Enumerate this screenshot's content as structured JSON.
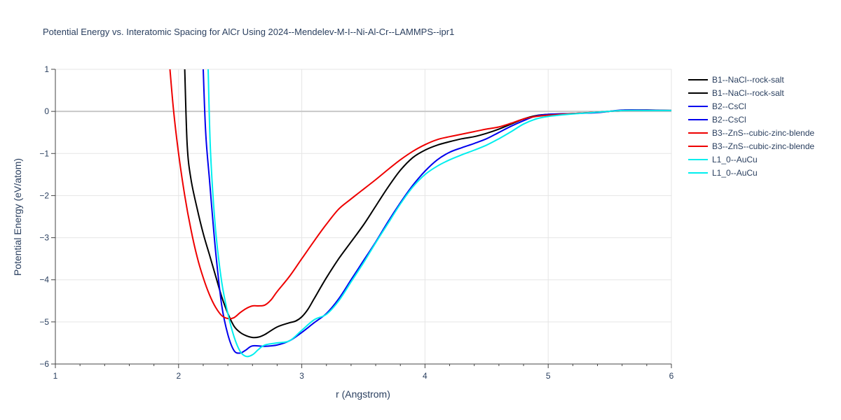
{
  "chart_data": {
    "type": "line",
    "title": "Potential Energy vs. Interatomic Spacing for AlCr Using 2024--Mendelev-M-I--Ni-Al-Cr--LAMMPS--ipr1",
    "xlabel": "r (Angstrom)",
    "ylabel": "Potential Energy (eV/atom)",
    "xlim": [
      1,
      6
    ],
    "ylim": [
      -6,
      1
    ],
    "xticks": [
      "1",
      "2",
      "3",
      "4",
      "5",
      "6"
    ],
    "yticks": [
      "1",
      "0",
      "−1",
      "−2",
      "−3",
      "−4",
      "−5",
      "−6"
    ],
    "grid": true,
    "legend_position": "right",
    "series": [
      {
        "name": "B1--NaCl--rock-salt",
        "color": "#000000",
        "x": [
          2.05,
          2.07,
          2.1,
          2.15,
          2.2,
          2.25,
          2.3,
          2.35,
          2.4,
          2.45,
          2.5,
          2.55,
          2.6,
          2.65,
          2.7,
          2.8,
          2.9,
          2.95,
          3.0,
          3.05,
          3.1,
          3.2,
          3.3,
          3.4,
          3.5,
          3.6,
          3.7,
          3.8,
          3.9,
          4.0,
          4.1,
          4.2,
          4.3,
          4.4,
          4.5,
          4.6,
          4.7,
          4.8,
          4.9,
          5.0,
          5.2,
          5.4,
          5.6,
          5.8,
          6.0
        ],
        "y": [
          1.0,
          -0.8,
          -1.6,
          -2.3,
          -2.9,
          -3.4,
          -3.9,
          -4.4,
          -4.8,
          -5.1,
          -5.25,
          -5.33,
          -5.37,
          -5.36,
          -5.3,
          -5.12,
          -5.02,
          -4.98,
          -4.88,
          -4.7,
          -4.45,
          -3.95,
          -3.5,
          -3.1,
          -2.7,
          -2.25,
          -1.8,
          -1.4,
          -1.1,
          -0.92,
          -0.8,
          -0.72,
          -0.65,
          -0.6,
          -0.52,
          -0.42,
          -0.3,
          -0.18,
          -0.1,
          -0.07,
          -0.05,
          -0.02,
          0.02,
          0.03,
          0.02
        ]
      },
      {
        "name": "B2--CsCl",
        "color": "#0000ee",
        "x": [
          2.2,
          2.22,
          2.25,
          2.3,
          2.35,
          2.4,
          2.45,
          2.5,
          2.55,
          2.6,
          2.7,
          2.8,
          2.9,
          3.0,
          3.1,
          3.2,
          3.3,
          3.4,
          3.5,
          3.6,
          3.7,
          3.8,
          3.9,
          4.0,
          4.1,
          4.2,
          4.3,
          4.4,
          4.5,
          4.6,
          4.7,
          4.8,
          4.9,
          5.0,
          5.2,
          5.4,
          5.6,
          5.8,
          6.0
        ],
        "y": [
          1.0,
          -0.5,
          -1.6,
          -3.3,
          -4.6,
          -5.3,
          -5.68,
          -5.74,
          -5.66,
          -5.57,
          -5.58,
          -5.55,
          -5.45,
          -5.25,
          -5.02,
          -4.8,
          -4.45,
          -4.0,
          -3.55,
          -3.1,
          -2.62,
          -2.17,
          -1.76,
          -1.42,
          -1.15,
          -0.97,
          -0.86,
          -0.76,
          -0.65,
          -0.5,
          -0.35,
          -0.22,
          -0.11,
          -0.07,
          -0.05,
          -0.03,
          0.03,
          0.03,
          0.02
        ]
      },
      {
        "name": "B3--ZnS--cubic-zinc-blende",
        "color": "#ee0000",
        "x": [
          1.93,
          1.96,
          2.0,
          2.05,
          2.1,
          2.15,
          2.2,
          2.25,
          2.3,
          2.35,
          2.4,
          2.45,
          2.5,
          2.55,
          2.6,
          2.65,
          2.7,
          2.75,
          2.8,
          2.9,
          3.0,
          3.1,
          3.2,
          3.3,
          3.4,
          3.5,
          3.6,
          3.7,
          3.8,
          3.9,
          4.0,
          4.1,
          4.2,
          4.3,
          4.4,
          4.5,
          4.6,
          4.7,
          4.8,
          4.9,
          5.0,
          5.2,
          5.4,
          5.6,
          5.8,
          6.0
        ],
        "y": [
          1.0,
          0.0,
          -1.0,
          -2.0,
          -2.8,
          -3.45,
          -3.95,
          -4.35,
          -4.65,
          -4.85,
          -4.92,
          -4.9,
          -4.78,
          -4.68,
          -4.62,
          -4.62,
          -4.6,
          -4.48,
          -4.28,
          -3.92,
          -3.5,
          -3.08,
          -2.68,
          -2.32,
          -2.08,
          -1.85,
          -1.62,
          -1.38,
          -1.15,
          -0.95,
          -0.79,
          -0.67,
          -0.6,
          -0.54,
          -0.48,
          -0.42,
          -0.37,
          -0.28,
          -0.18,
          -0.12,
          -0.09,
          -0.05,
          -0.02,
          0.02,
          0.02,
          0.02
        ]
      },
      {
        "name": "L1_0--AuCu",
        "color": "#00eeee",
        "x": [
          2.24,
          2.26,
          2.3,
          2.35,
          2.4,
          2.45,
          2.5,
          2.55,
          2.6,
          2.65,
          2.7,
          2.8,
          2.9,
          3.0,
          3.1,
          3.2,
          3.3,
          3.4,
          3.5,
          3.6,
          3.7,
          3.8,
          3.9,
          4.0,
          4.1,
          4.2,
          4.3,
          4.4,
          4.5,
          4.6,
          4.7,
          4.8,
          4.9,
          5.0,
          5.2,
          5.4,
          5.6,
          5.8,
          6.0
        ],
        "y": [
          1.0,
          -1.0,
          -2.8,
          -4.05,
          -4.8,
          -5.35,
          -5.7,
          -5.82,
          -5.78,
          -5.65,
          -5.55,
          -5.5,
          -5.45,
          -5.2,
          -4.95,
          -4.82,
          -4.5,
          -4.05,
          -3.6,
          -3.12,
          -2.66,
          -2.2,
          -1.8,
          -1.5,
          -1.3,
          -1.15,
          -1.03,
          -0.92,
          -0.8,
          -0.65,
          -0.48,
          -0.3,
          -0.18,
          -0.12,
          -0.06,
          -0.02,
          0.02,
          0.02,
          0.02
        ]
      }
    ]
  },
  "legend": {
    "items": [
      {
        "label": "B1--NaCl--rock-salt",
        "color": "#000000"
      },
      {
        "label": "B1--NaCl--rock-salt",
        "color": "#000000"
      },
      {
        "label": "B2--CsCl",
        "color": "#0000ee"
      },
      {
        "label": "B2--CsCl",
        "color": "#0000ee"
      },
      {
        "label": "B3--ZnS--cubic-zinc-blende",
        "color": "#ee0000"
      },
      {
        "label": "B3--ZnS--cubic-zinc-blende",
        "color": "#ee0000"
      },
      {
        "label": "L1_0--AuCu",
        "color": "#00eeee"
      },
      {
        "label": "L1_0--AuCu",
        "color": "#00eeee"
      }
    ]
  }
}
